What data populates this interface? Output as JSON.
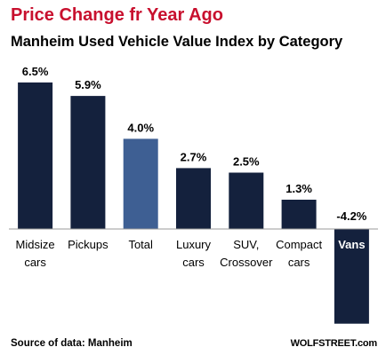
{
  "header": {
    "title": "Price Change fr Year Ago",
    "subtitle": "Manheim Used Vehicle Value Index by Category"
  },
  "footer": {
    "source": "Source of data: Manheim",
    "brand": "WOLFSTREET.com"
  },
  "colors": {
    "title": "#c8102e",
    "bar": "#14213d",
    "highlight_bar": "#3e5f93",
    "baseline": "#999999",
    "highlight_label_text": "#ffffff"
  },
  "chart_data": {
    "type": "bar",
    "title": "Price Change fr Year Ago",
    "subtitle": "Manheim Used Vehicle Value Index by Category",
    "categories": [
      [
        "Midsize",
        "cars"
      ],
      [
        "Pickups"
      ],
      [
        "Total"
      ],
      [
        "Luxury",
        "cars"
      ],
      [
        "SUV,",
        "Crossover"
      ],
      [
        "Compact",
        "cars"
      ],
      [
        "Vans"
      ]
    ],
    "values": [
      6.5,
      5.9,
      4.0,
      2.7,
      2.5,
      1.3,
      -4.2
    ],
    "data_labels": [
      "6.5%",
      "5.9%",
      "4.0%",
      "2.7%",
      "2.5%",
      "1.3%",
      "-4.2%"
    ],
    "highlight_index": 2,
    "inverted_label_index": 6,
    "ylim": [
      -4.2,
      6.5
    ],
    "grid": false,
    "legend": "none"
  }
}
